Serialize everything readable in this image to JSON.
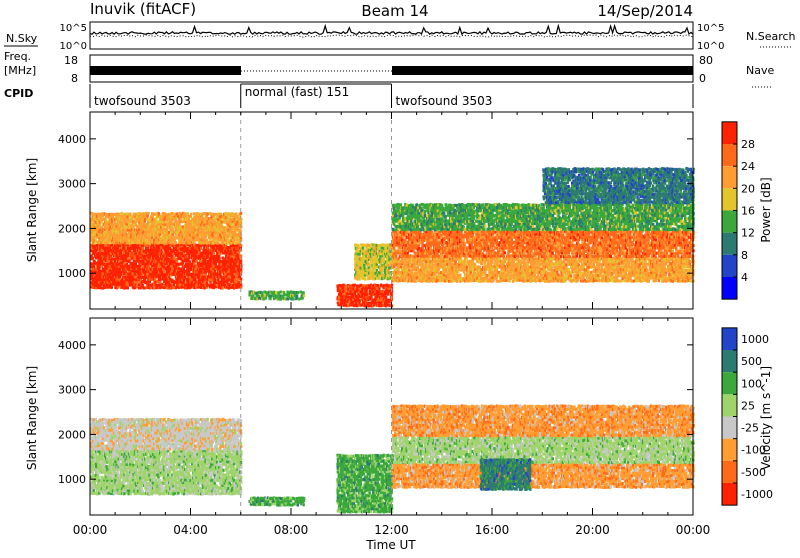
{
  "header": {
    "station": "Inuvik (fitACF)",
    "beam": "Beam 14",
    "date": "14/Sep/2014"
  },
  "top_panels": {
    "nsky_label": "N.Sky",
    "nsearch_label": "N.Search",
    "nsky_ticks": [
      "10^5",
      "10^0"
    ],
    "nsearch_ticks": [
      "10^5",
      "10^0"
    ],
    "freq_label_line1": "Freq.",
    "freq_label_line2": "[MHz]",
    "freq_ticks": [
      "18",
      "8"
    ],
    "nave_label": "Nave",
    "nave_ticks": [
      "80",
      "0"
    ],
    "cpid_label": "CPID",
    "cpid_segments": [
      {
        "label": "twofsound 3503",
        "start_hour": 0,
        "end_hour": 6
      },
      {
        "label": "normal (fast) 151",
        "start_hour": 6,
        "end_hour": 12
      },
      {
        "label": "twofsound 3503",
        "start_hour": 12,
        "end_hour": 24
      }
    ]
  },
  "chart_data": [
    {
      "type": "heatmap",
      "name": "power",
      "xlabel": "Time UT",
      "ylabel": "Slant Range [km]",
      "x_ticks": [
        "00:00",
        "04:00",
        "08:00",
        "12:00",
        "16:00",
        "20:00",
        "00:00"
      ],
      "x_range_hours": [
        0,
        24
      ],
      "y_ticks": [
        1000,
        2000,
        3000,
        4000
      ],
      "ylim": [
        200,
        4600
      ],
      "colorbar": {
        "label": "Power [dB]",
        "ticks": [
          28,
          24,
          20,
          16,
          12,
          8,
          4
        ],
        "colors": [
          "#ff2200",
          "#ff6a1a",
          "#ff9d33",
          "#e2c52a",
          "#3aa83a",
          "#2c7a72",
          "#2244c8",
          "#0000ff"
        ]
      },
      "regions": [
        {
          "t0": 0.0,
          "t1": 6.0,
          "r0": 700,
          "r1": 1700,
          "level": 28
        },
        {
          "t0": 0.0,
          "t1": 6.0,
          "r0": 1700,
          "r1": 2400,
          "level": 18
        },
        {
          "t0": 6.3,
          "t1": 8.5,
          "r0": 450,
          "r1": 650,
          "level": 12
        },
        {
          "t0": 9.8,
          "t1": 12.0,
          "r0": 300,
          "r1": 800,
          "level": 28
        },
        {
          "t0": 10.5,
          "t1": 12.0,
          "r0": 900,
          "r1": 1700,
          "level": 14
        },
        {
          "t0": 12.0,
          "t1": 24.0,
          "r0": 850,
          "r1": 1400,
          "level": 20
        },
        {
          "t0": 12.0,
          "t1": 24.0,
          "r0": 1400,
          "r1": 2000,
          "level": 22
        },
        {
          "t0": 12.0,
          "t1": 24.0,
          "r0": 2000,
          "r1": 2600,
          "level": 12
        },
        {
          "t0": 18.0,
          "t1": 24.0,
          "r0": 2600,
          "r1": 3400,
          "level": 6
        }
      ]
    },
    {
      "type": "heatmap",
      "name": "velocity",
      "xlabel": "Time UT",
      "ylabel": "Slant Range [km]",
      "x_ticks": [
        "00:00",
        "04:00",
        "08:00",
        "12:00",
        "16:00",
        "20:00",
        "00:00"
      ],
      "x_range_hours": [
        0,
        24
      ],
      "y_ticks": [
        1000,
        2000,
        3000,
        4000
      ],
      "ylim": [
        200,
        4600
      ],
      "colorbar": {
        "label": "Velocity [m s^-1]",
        "ticks": [
          1000,
          500,
          100,
          25,
          -25,
          -100,
          -500,
          -1000
        ],
        "colors": [
          "#2244c8",
          "#2c7a72",
          "#3aa83a",
          "#9fd46a",
          "#c8c8c8",
          "#ff9d33",
          "#ff6a1a",
          "#ff2200"
        ]
      },
      "regions": [
        {
          "t0": 0.0,
          "t1": 6.0,
          "r0": 700,
          "r1": 1700,
          "level": 60
        },
        {
          "t0": 0.0,
          "t1": 6.0,
          "r0": 1700,
          "r1": 2400,
          "level": -60
        },
        {
          "t0": 6.3,
          "t1": 8.5,
          "r0": 450,
          "r1": 650,
          "level": 100
        },
        {
          "t0": 9.8,
          "t1": 12.0,
          "r0": 300,
          "r1": 1600,
          "level": 200
        },
        {
          "t0": 12.0,
          "t1": 24.0,
          "r0": 850,
          "r1": 1400,
          "level": -150
        },
        {
          "t0": 12.0,
          "t1": 24.0,
          "r0": 1400,
          "r1": 2000,
          "level": 0
        },
        {
          "t0": 12.0,
          "t1": 24.0,
          "r0": 2000,
          "r1": 2700,
          "level": -200
        },
        {
          "t0": 15.5,
          "t1": 17.5,
          "r0": 800,
          "r1": 1500,
          "level": 600
        }
      ]
    }
  ]
}
